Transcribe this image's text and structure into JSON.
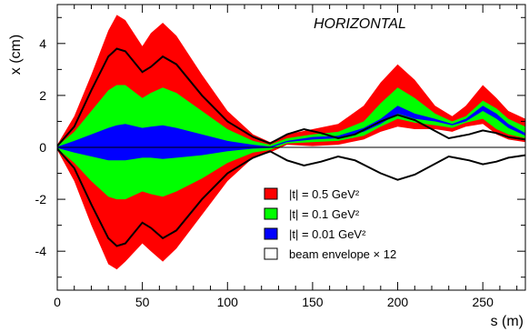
{
  "chart_data": {
    "type": "area",
    "title": "HORIZONTAL",
    "xlabel": "s (m)",
    "ylabel": "x (cm)",
    "xlim": [
      0,
      275
    ],
    "ylim": [
      -5.5,
      5.5
    ],
    "x_ticks": [
      0,
      50,
      100,
      150,
      200,
      250
    ],
    "x_tick_labels": [
      "0",
      "50",
      "100",
      "150",
      "200",
      "250"
    ],
    "y_ticks": [
      -4,
      -2,
      0,
      2,
      4
    ],
    "y_tick_labels": [
      "-4",
      "-2",
      "0",
      "2",
      "4"
    ],
    "legend_position": "bottom-right",
    "series": [
      {
        "name": "|t| = 0.5 GeV²",
        "color": "#ff0000",
        "x": [
          0,
          10,
          20,
          30,
          35,
          40,
          50,
          55,
          62,
          70,
          85,
          100,
          115,
          125,
          135,
          150,
          165,
          180,
          190,
          200,
          210,
          222,
          232,
          240,
          250,
          258,
          265,
          275
        ],
        "upper": [
          0.1,
          1.2,
          2.8,
          4.5,
          5.1,
          4.9,
          3.9,
          4.4,
          4.8,
          4.3,
          2.8,
          1.4,
          0.5,
          0.2,
          0.5,
          0.7,
          0.9,
          1.6,
          2.5,
          3.2,
          2.6,
          1.6,
          1.2,
          1.6,
          2.4,
          1.9,
          1.4,
          1.1
        ],
        "lower": [
          -0.1,
          -1.3,
          -3.0,
          -4.5,
          -4.7,
          -4.4,
          -3.7,
          -4.0,
          -4.4,
          -3.9,
          -2.6,
          -1.3,
          -0.4,
          -0.2,
          0.1,
          0.05,
          0.1,
          0.3,
          0.6,
          0.8,
          0.7,
          0.7,
          0.6,
          0.8,
          0.9,
          0.5,
          0.3,
          0.2
        ]
      },
      {
        "name": "|t| = 0.1 GeV²",
        "color": "#00ff00",
        "x": [
          0,
          10,
          20,
          30,
          35,
          40,
          50,
          55,
          62,
          70,
          85,
          100,
          115,
          125,
          135,
          150,
          165,
          180,
          190,
          200,
          210,
          222,
          232,
          240,
          250,
          258,
          265,
          275
        ],
        "upper": [
          0.05,
          0.6,
          1.4,
          2.2,
          2.4,
          2.4,
          1.9,
          2.1,
          2.3,
          2.1,
          1.4,
          0.7,
          0.25,
          0.1,
          0.35,
          0.5,
          0.6,
          1.0,
          1.7,
          2.3,
          1.9,
          1.3,
          1.0,
          1.2,
          1.8,
          1.5,
          1.1,
          0.8
        ],
        "lower": [
          -0.05,
          -0.6,
          -1.3,
          -1.9,
          -2.0,
          -2.0,
          -1.7,
          -1.8,
          -1.9,
          -1.7,
          -1.2,
          -0.6,
          -0.2,
          -0.1,
          0.15,
          0.2,
          0.25,
          0.45,
          0.8,
          1.1,
          0.95,
          0.85,
          0.75,
          0.95,
          1.1,
          0.7,
          0.5,
          0.35
        ]
      },
      {
        "name": "|t| = 0.01 GeV²",
        "color": "#0000ff",
        "x": [
          0,
          10,
          20,
          30,
          35,
          40,
          50,
          55,
          62,
          70,
          85,
          100,
          115,
          125,
          135,
          150,
          165,
          180,
          190,
          200,
          210,
          222,
          232,
          240,
          250,
          258,
          265,
          275
        ],
        "upper": [
          0.02,
          0.25,
          0.5,
          0.75,
          0.85,
          0.9,
          0.75,
          0.8,
          0.85,
          0.75,
          0.5,
          0.25,
          0.1,
          0.03,
          0.25,
          0.4,
          0.45,
          0.75,
          1.1,
          1.6,
          1.3,
          1.1,
          0.9,
          1.1,
          1.6,
          1.3,
          0.9,
          0.55
        ],
        "lower": [
          -0.02,
          -0.2,
          -0.35,
          -0.5,
          -0.5,
          -0.5,
          -0.4,
          -0.4,
          -0.45,
          -0.4,
          -0.3,
          -0.15,
          -0.05,
          -0.02,
          0.2,
          0.3,
          0.35,
          0.6,
          0.9,
          1.3,
          1.1,
          1.0,
          0.85,
          1.0,
          1.4,
          1.1,
          0.75,
          0.45
        ]
      },
      {
        "name": "beam envelope × 12",
        "color": "#000000",
        "x": [
          0,
          10,
          20,
          30,
          35,
          40,
          50,
          55,
          62,
          70,
          85,
          100,
          115,
          125,
          135,
          145,
          155,
          165,
          175,
          190,
          200,
          210,
          220,
          230,
          242,
          250,
          258,
          265,
          275
        ],
        "upper": [
          0.05,
          0.8,
          2.2,
          3.5,
          3.8,
          3.7,
          2.9,
          3.1,
          3.5,
          3.2,
          2.0,
          1.0,
          0.4,
          0.15,
          0.5,
          0.7,
          0.55,
          0.35,
          0.5,
          1.0,
          1.25,
          1.05,
          0.7,
          0.35,
          0.5,
          0.65,
          0.55,
          0.4,
          0.3
        ],
        "lower": [
          -0.05,
          -0.8,
          -2.2,
          -3.5,
          -3.8,
          -3.7,
          -2.9,
          -3.1,
          -3.5,
          -3.2,
          -2.0,
          -1.0,
          -0.4,
          -0.15,
          -0.5,
          -0.7,
          -0.55,
          -0.35,
          -0.5,
          -1.0,
          -1.25,
          -1.05,
          -0.7,
          -0.35,
          -0.5,
          -0.65,
          -0.55,
          -0.4,
          -0.3
        ]
      }
    ],
    "reference_line": {
      "y": 0
    }
  }
}
